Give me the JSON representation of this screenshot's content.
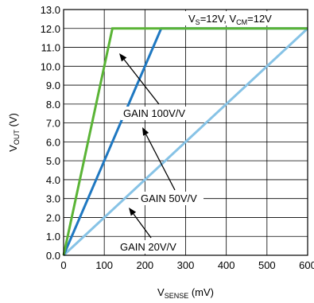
{
  "chart_data": {
    "type": "line",
    "xlabel": {
      "main": "V",
      "sub": "SENSE",
      "unit": " (mV)"
    },
    "ylabel": {
      "main": "V",
      "sub": "OUT",
      "unit": " (V)"
    },
    "xlim": [
      0,
      600
    ],
    "ylim": [
      0,
      13
    ],
    "xticks": [
      0,
      100,
      200,
      300,
      400,
      500,
      600
    ],
    "yticks": [
      0,
      1,
      2,
      3,
      4,
      5,
      6,
      7,
      8,
      9,
      10,
      11,
      12,
      13
    ],
    "grid": true,
    "condition": {
      "p1": "V",
      "s1": "S",
      "t1": "=12V, V",
      "s2": "CM",
      "t2": "=12V"
    },
    "series": [
      {
        "name": "GAIN 100V/V",
        "color": "#5ab436",
        "x": [
          0,
          120,
          600
        ],
        "y": [
          0,
          12,
          12
        ]
      },
      {
        "name": "GAIN 50V/V",
        "color": "#1f78c1",
        "x": [
          0,
          240,
          600
        ],
        "y": [
          0,
          12,
          12
        ]
      },
      {
        "name": "GAIN 20V/V",
        "color": "#87c3e6",
        "x": [
          0,
          600
        ],
        "y": [
          0,
          12
        ]
      }
    ],
    "annotations": [
      {
        "text": "GAIN 100V/V",
        "series": 0
      },
      {
        "text": "GAIN 50V/V",
        "series": 1
      },
      {
        "text": "GAIN 20V/V",
        "series": 2
      }
    ]
  }
}
